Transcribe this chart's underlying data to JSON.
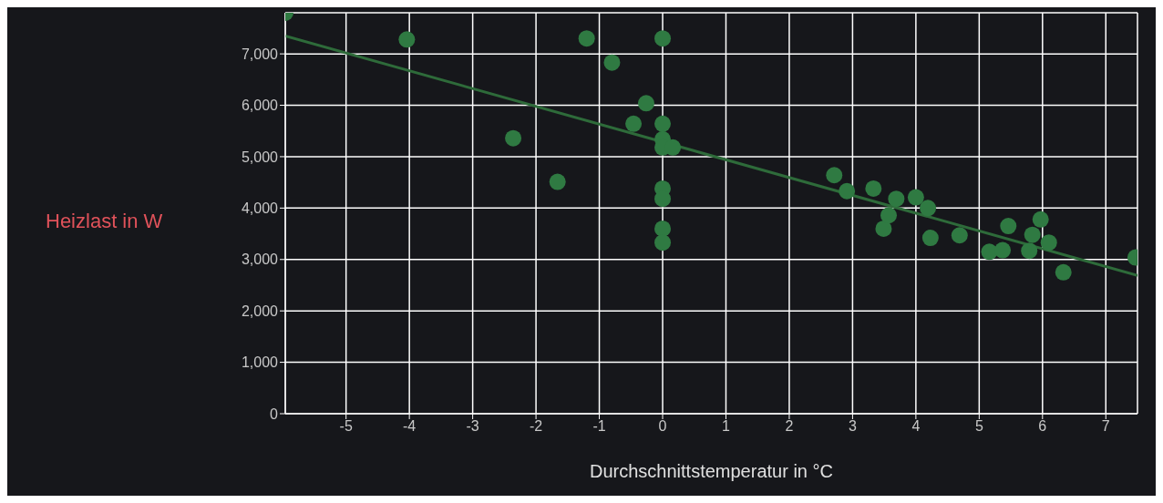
{
  "chart_data": {
    "type": "scatter",
    "xlabel": "Durchschnittstemperatur in °C",
    "ylabel": "Heizlast in W",
    "xlim": [
      -5.96,
      7.5
    ],
    "xticks": [
      -5,
      -4,
      -3,
      -2,
      -1,
      0,
      1,
      2,
      3,
      4,
      5,
      6,
      7
    ],
    "ylim": [
      0,
      7800
    ],
    "yticks": [
      0,
      {
        "value": 1000,
        "label": "1,000"
      },
      {
        "value": 2000,
        "label": "2,000"
      },
      {
        "value": 3000,
        "label": "3,000"
      },
      {
        "value": 4000,
        "label": "4,000"
      },
      {
        "value": 5000,
        "label": "5,000"
      },
      {
        "value": 6000,
        "label": "6,000"
      },
      {
        "value": 7000,
        "label": "7,000"
      }
    ],
    "grid": true,
    "marker": "circle",
    "series": [
      {
        "color": "#2f7a42",
        "x": [
          -5.96,
          -4.04,
          -2.36,
          -1.66,
          -1.2,
          -0.8,
          -0.46,
          -0.26,
          0,
          0,
          0,
          0,
          0.16,
          0,
          0,
          0,
          0,
          2.71,
          2.91,
          3.33,
          3.49,
          3.57,
          3.69,
          4.0,
          4.19,
          4.23,
          4.69,
          5.16,
          5.37,
          5.46,
          5.79,
          5.84,
          5.97,
          6.1,
          6.33,
          7.47
        ],
        "values": [
          7800,
          7280,
          5360,
          4510,
          7300,
          6830,
          5640,
          6040,
          7300,
          5640,
          5340,
          5180,
          5180,
          4380,
          4180,
          3600,
          3330,
          4640,
          4330,
          4380,
          3600,
          3860,
          4180,
          4210,
          4000,
          3420,
          3470,
          3150,
          3180,
          3650,
          3170,
          3480,
          3780,
          3330,
          2750,
          3040
        ]
      },
      {
        "type": "line",
        "color": "#2e6b3a",
        "line_style": "solid",
        "marker": "none",
        "x": [
          -5.96,
          7.5
        ],
        "values": [
          7350,
          2690
        ]
      }
    ]
  }
}
